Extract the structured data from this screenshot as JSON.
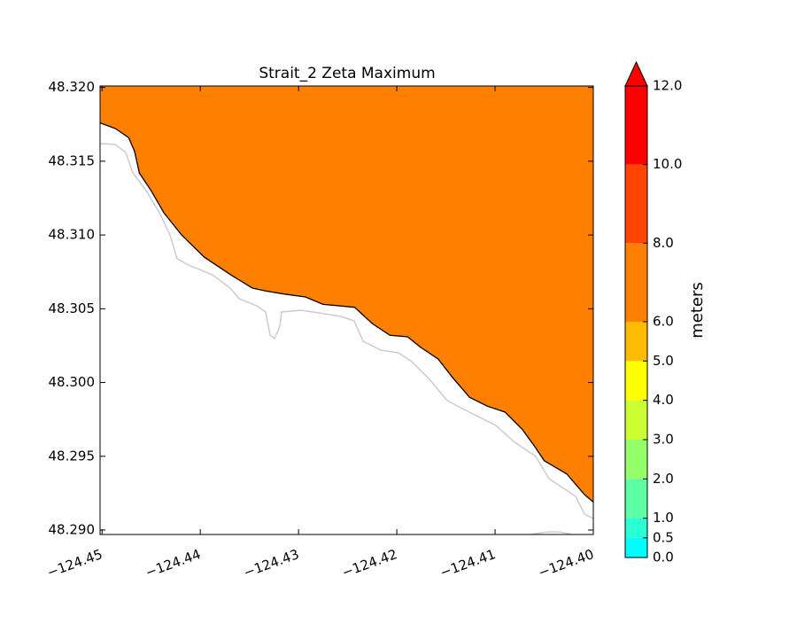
{
  "chart_data": {
    "type": "contour",
    "title": "Strait_2 Zeta Maximum",
    "xlim": [
      -124.4502,
      -124.4
    ],
    "ylim": [
      48.2897,
      48.3201
    ],
    "xticks": [
      {
        "value": -124.45,
        "label": "−124.45"
      },
      {
        "value": -124.44,
        "label": "−124.44"
      },
      {
        "value": -124.43,
        "label": "−124.43"
      },
      {
        "value": -124.42,
        "label": "−124.42"
      },
      {
        "value": -124.41,
        "label": "−124.41"
      },
      {
        "value": -124.4,
        "label": "−124.40"
      }
    ],
    "yticks": [
      {
        "value": 48.29,
        "label": "48.290"
      },
      48.295,
      {
        "value": 48.3,
        "label": "48.300"
      },
      48.305,
      {
        "value": 48.31,
        "label": "48.310"
      },
      48.315,
      {
        "value": 48.32,
        "label": "48.320"
      }
    ],
    "coastline": {
      "color": "#000000",
      "x": [
        -124.4502,
        -124.4486,
        -124.4473,
        -124.4467,
        -124.4462,
        -124.445,
        -124.4437,
        -124.4419,
        -124.4396,
        -124.4369,
        -124.4347,
        -124.4333,
        -124.4315,
        -124.4293,
        -124.4275,
        -124.4243,
        -124.4225,
        -124.4207,
        -124.4189,
        -124.4176,
        -124.4158,
        -124.4144,
        -124.4126,
        -124.4108,
        -124.409,
        -124.4072,
        -124.4059,
        -124.405,
        -124.4027,
        -124.4009,
        -124.4
      ],
      "y": [
        48.3176,
        48.3172,
        48.3166,
        48.3157,
        48.3142,
        48.313,
        48.3115,
        48.31,
        48.3085,
        48.3073,
        48.3064,
        48.3062,
        48.306,
        48.3058,
        48.3053,
        48.3051,
        48.304,
        48.3032,
        48.3031,
        48.3024,
        48.3016,
        48.3004,
        48.299,
        48.2984,
        48.298,
        48.2968,
        48.2956,
        48.2947,
        48.2938,
        48.2924,
        48.2919
      ]
    },
    "fill_level": 7,
    "colorbar": {
      "label": "meters",
      "levels": [
        {
          "value": 0,
          "label": "0.0"
        },
        {
          "value": 0.5,
          "label": "0.5"
        },
        {
          "value": 1,
          "label": "1.0"
        },
        {
          "value": 2,
          "label": "2.0"
        },
        {
          "value": 3,
          "label": "3.0"
        },
        {
          "value": 4,
          "label": "4.0"
        },
        {
          "value": 5,
          "label": "5.0"
        },
        {
          "value": 6,
          "label": "6.0"
        },
        {
          "value": 8,
          "label": "8.0"
        },
        {
          "value": 10,
          "label": "10.0"
        },
        {
          "value": 12,
          "label": "12.0"
        }
      ],
      "colors": [
        "#00ffff",
        "#2bffd4",
        "#5cffa3",
        "#95ff6a",
        "#ccff33",
        "#ffff00",
        "#ffbb00",
        "#ff8000",
        "#ff4400",
        "#ff0000"
      ],
      "extend_color": "#ff0000"
    }
  }
}
